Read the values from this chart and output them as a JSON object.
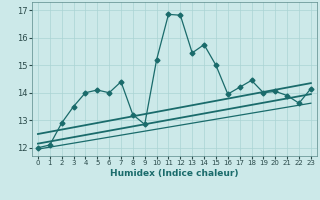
{
  "xlabel": "Humidex (Indice chaleur)",
  "xlim": [
    -0.5,
    23.5
  ],
  "ylim": [
    11.7,
    17.3
  ],
  "xticks": [
    0,
    1,
    2,
    3,
    4,
    5,
    6,
    7,
    8,
    9,
    10,
    11,
    12,
    13,
    14,
    15,
    16,
    17,
    18,
    19,
    20,
    21,
    22,
    23
  ],
  "yticks": [
    12,
    13,
    14,
    15,
    16,
    17
  ],
  "background_color": "#cce9e9",
  "grid_color": "#aad4d4",
  "line_color": "#1a6b6b",
  "series_main": {
    "x": [
      0,
      1,
      2,
      3,
      4,
      5,
      6,
      7,
      8,
      9,
      10,
      11,
      12,
      13,
      14,
      15,
      16,
      17,
      18,
      19,
      20,
      21,
      22,
      23
    ],
    "y": [
      12.0,
      12.1,
      12.9,
      13.5,
      14.0,
      14.1,
      14.0,
      14.4,
      13.2,
      12.85,
      15.2,
      16.85,
      16.82,
      15.45,
      15.75,
      15.0,
      13.95,
      14.2,
      14.45,
      14.0,
      14.05,
      13.9,
      13.62,
      14.15
    ]
  },
  "series_reg1": {
    "x": [
      0,
      23
    ],
    "y": [
      12.5,
      14.35
    ]
  },
  "series_reg2": {
    "x": [
      0,
      23
    ],
    "y": [
      12.1,
      14.0
    ]
  },
  "series_reg3": {
    "x": [
      0,
      23
    ],
    "y": [
      11.9,
      13.7
    ]
  }
}
